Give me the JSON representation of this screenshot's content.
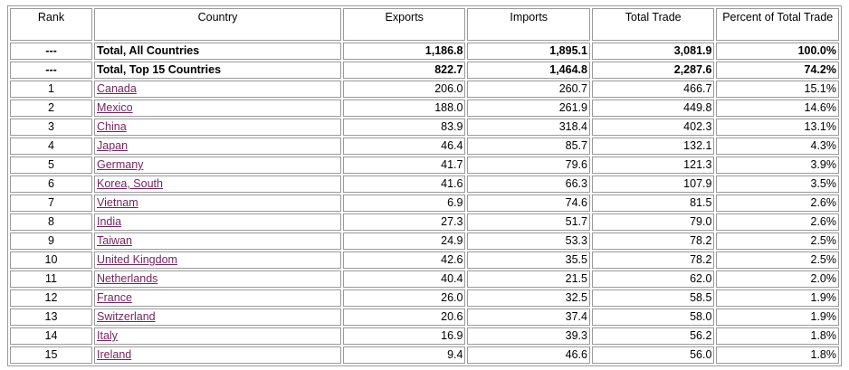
{
  "headers": {
    "rank": "Rank",
    "country": "Country",
    "exports": "Exports",
    "imports": "Imports",
    "total": "Total Trade",
    "percent": "Percent of Total Trade"
  },
  "totals": [
    {
      "rank": "---",
      "country": "Total, All Countries",
      "exports": "1,186.8",
      "imports": "1,895.1",
      "total": "3,081.9",
      "percent": "100.0%"
    },
    {
      "rank": "---",
      "country": "Total, Top 15 Countries",
      "exports": "822.7",
      "imports": "1,464.8",
      "total": "2,287.6",
      "percent": "74.2%"
    }
  ],
  "rows": [
    {
      "rank": "1",
      "country": "Canada",
      "exports": "206.0",
      "imports": "260.7",
      "total": "466.7",
      "percent": "15.1%"
    },
    {
      "rank": "2",
      "country": "Mexico",
      "exports": "188.0",
      "imports": "261.9",
      "total": "449.8",
      "percent": "14.6%"
    },
    {
      "rank": "3",
      "country": "China",
      "exports": "83.9",
      "imports": "318.4",
      "total": "402.3",
      "percent": "13.1%"
    },
    {
      "rank": "4",
      "country": "Japan",
      "exports": "46.4",
      "imports": "85.7",
      "total": "132.1",
      "percent": "4.3%"
    },
    {
      "rank": "5",
      "country": "Germany",
      "exports": "41.7",
      "imports": "79.6",
      "total": "121.3",
      "percent": "3.9%"
    },
    {
      "rank": "6",
      "country": "Korea, South",
      "exports": "41.6",
      "imports": "66.3",
      "total": "107.9",
      "percent": "3.5%"
    },
    {
      "rank": "7",
      "country": "Vietnam",
      "exports": "6.9",
      "imports": "74.6",
      "total": "81.5",
      "percent": "2.6%"
    },
    {
      "rank": "8",
      "country": "India",
      "exports": "27.3",
      "imports": "51.7",
      "total": "79.0",
      "percent": "2.6%"
    },
    {
      "rank": "9",
      "country": "Taiwan",
      "exports": "24.9",
      "imports": "53.3",
      "total": "78.2",
      "percent": "2.5%"
    },
    {
      "rank": "10",
      "country": "United Kingdom",
      "exports": "42.6",
      "imports": "35.5",
      "total": "78.2",
      "percent": "2.5%"
    },
    {
      "rank": "11",
      "country": "Netherlands",
      "exports": "40.4",
      "imports": "21.5",
      "total": "62.0",
      "percent": "2.0%"
    },
    {
      "rank": "12",
      "country": "France",
      "exports": "26.0",
      "imports": "32.5",
      "total": "58.5",
      "percent": "1.9%"
    },
    {
      "rank": "13",
      "country": "Switzerland",
      "exports": "20.6",
      "imports": "37.4",
      "total": "58.0",
      "percent": "1.9%"
    },
    {
      "rank": "14",
      "country": "Italy",
      "exports": "16.9",
      "imports": "39.3",
      "total": "56.2",
      "percent": "1.8%"
    },
    {
      "rank": "15",
      "country": "Ireland",
      "exports": "9.4",
      "imports": "46.6",
      "total": "56.0",
      "percent": "1.8%"
    }
  ]
}
